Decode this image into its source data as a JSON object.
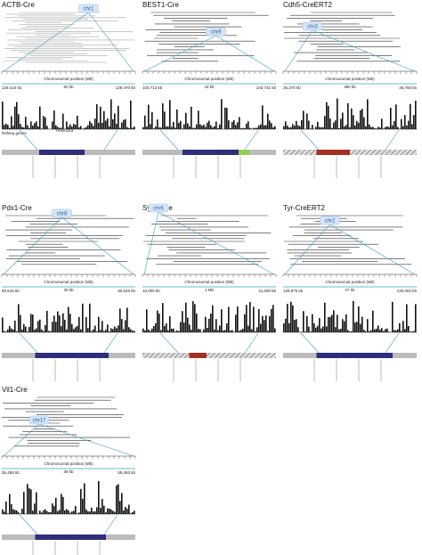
{
  "panels": [
    {
      "title": "ACTB-Cre",
      "chr": "chr1",
      "axis_label": "Chromosomal position (Mb)",
      "left": "129,410 kb",
      "scale": "60 kb",
      "right": "129,470 kb",
      "track_label": "Refseq genes",
      "gene_label": "Tmem163"
    },
    {
      "title": "BEST1-Cre",
      "chr": "chr9",
      "axis_label": "Chromosomal position (Mb)",
      "left": "103,713 kb",
      "scale": "18 kb",
      "right": "103,731 kb"
    },
    {
      "title": "Cdh5-CreERT2",
      "chr": "chr3",
      "axis_label": "Chromosomal position (Mb)",
      "left": "36,370 kb",
      "scale": "380 kb",
      "right": "36,750 kb"
    },
    {
      "title": "Pdx1-Cre",
      "chr": "chr8",
      "axis_label": "Chromosomal position (Mb)",
      "left": "90,515 kb",
      "scale": "30 kb",
      "right": "90,545 kb"
    },
    {
      "title": "Syn1-Cre",
      "chr": "chr6",
      "axis_label": "Chromosomal position (Mb)",
      "left": "10,000 kb",
      "scale": "1 Mb",
      "right": "11,000 kb"
    },
    {
      "title": "Tyr-CreERT2",
      "chr": "chr2",
      "axis_label": "Chromosomal position (Mb)",
      "left": "129,975 kb",
      "scale": "27 kb",
      "right": "130,002 kb"
    },
    {
      "title": "Vil1-Cre",
      "chr": "chr17",
      "axis_label": "Chromosomal position (Mb)",
      "left": "55,455 kb",
      "scale": "38 kb",
      "right": "55,493 kb"
    }
  ]
}
